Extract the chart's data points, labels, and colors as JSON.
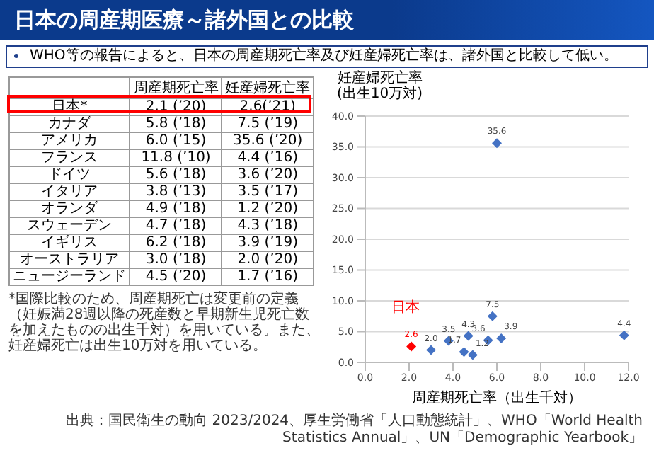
{
  "chart_data": [
    {
      "type": "other",
      "title": "日本の周産期医療～諸外国との比較",
      "subtitle": "WHO等の報告によると、日本の周産期死亡率及び妊産婦死亡率は、諸外国と比較して低い。",
      "categories": [
        "日本*",
        "カナダ",
        "アメリカ",
        "フランス",
        "ドイツ",
        "イタリア",
        "オランダ",
        "スウェーデン",
        "イギリス",
        "オーストラリア",
        "ニュージーランド"
      ],
      "series": [
        {
          "name": "周産期死亡率",
          "values": [
            2.1,
            5.8,
            6.0,
            11.8,
            5.6,
            3.8,
            4.9,
            4.7,
            6.2,
            3.0,
            4.5
          ],
          "value_labels": [
            "2.1 (’20)",
            "5.8 (’18)",
            "6.0 (’15)",
            "11.8 (’10)",
            "5.6 (’18)",
            "3.8 (’13)",
            "4.9 (’18)",
            "4.7 (’18)",
            "6.2 (’18)",
            "3.0 (’18)",
            "4.5 (’20)"
          ]
        },
        {
          "name": "妊産婦死亡率",
          "values": [
            2.6,
            7.5,
            35.6,
            4.4,
            3.6,
            3.5,
            1.2,
            4.3,
            3.9,
            2.0,
            1.7
          ],
          "value_labels": [
            "2.6(’21)",
            "7.5 (’19)",
            "35.6 (’20)",
            "4.4 (’16)",
            "3.6 (’20)",
            "3.5 (’17)",
            "1.2 (’20)",
            "4.3 (’18)",
            "3.9 (’19)",
            "2.0 (’20)",
            "1.7 (’16)"
          ]
        }
      ],
      "annotations": [
        "*国際比較のため、周産期死亡は変更前の定義（妊娠満28週以降の死産数と早期新生児死亡数を加えたものの出生千対）を用いている。また、妊産婦死亡は出生10万対を用いている。"
      ]
    },
    {
      "type": "scatter",
      "xlabel": "周産期死亡率（出生千対）",
      "ylabel": "妊産婦死亡率\n(出生10万対)",
      "xlim": [
        0,
        12
      ],
      "xticks": [
        {
          "value": 0,
          "label": "0.0"
        },
        {
          "value": 2,
          "label": "2.0"
        },
        {
          "value": 4,
          "label": "4.0"
        },
        {
          "value": 6,
          "label": "6.0"
        },
        {
          "value": 8,
          "label": "8.0"
        },
        {
          "value": 10,
          "label": "10.0"
        },
        {
          "value": 12,
          "label": "12.0"
        }
      ],
      "ylim": [
        0,
        40
      ],
      "yticks": [
        {
          "value": 0,
          "label": "0.0"
        },
        {
          "value": 5,
          "label": "5.0"
        },
        {
          "value": 10,
          "label": "10.0"
        },
        {
          "value": 15,
          "label": "15.0"
        },
        {
          "value": 20,
          "label": "20.0"
        },
        {
          "value": 25,
          "label": "25.0"
        },
        {
          "value": 30,
          "label": "30.0"
        },
        {
          "value": 35,
          "label": "35.0"
        },
        {
          "value": 40,
          "label": "40.0"
        }
      ],
      "grid": "y",
      "marker": "diamond",
      "series": [
        {
          "name": "日本",
          "color": "#ff0000",
          "x": [
            2.1
          ],
          "values": [
            2.6
          ],
          "value_labels": [
            "2.6"
          ]
        },
        {
          "color": "#4472c4",
          "x": [
            5.8,
            6.0,
            11.8,
            5.6,
            3.8,
            4.9,
            4.7,
            6.2,
            3.0,
            4.5
          ],
          "values": [
            7.5,
            35.6,
            4.4,
            3.6,
            3.5,
            1.2,
            4.3,
            3.9,
            2.0,
            1.7
          ],
          "value_labels": [
            "7.5",
            "35.6",
            "4.4",
            "3.6",
            "3.5",
            "1.2",
            "4.3",
            "3.9",
            "2.0",
            "1.7"
          ]
        }
      ],
      "annotations": [
        "出典：国民衛生の動向 2023/2024、厚生労働省「人口動態統計」、WHO「World Health Statistics Annual」、UN「Demographic Yearbook」"
      ]
    }
  ]
}
